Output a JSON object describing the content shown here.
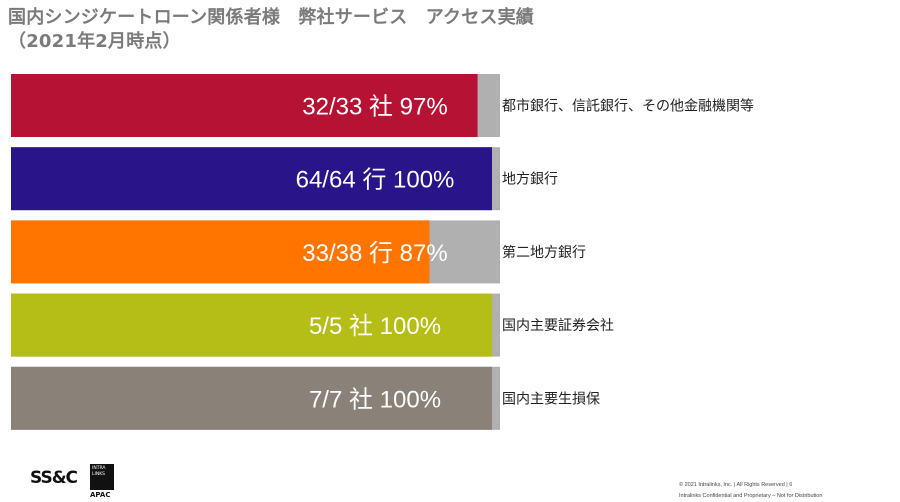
{
  "title": {
    "line1": "国内シンジケートローン関係者様　弊社サービス　アクセス実績",
    "line2": "（2021年2月時点）"
  },
  "chart_data": {
    "type": "bar",
    "orientation": "horizontal",
    "categories": [
      "都市銀行、信託銀行、その他金融機関等",
      "地方銀行",
      "第二地方銀行",
      "国内主要証券会社",
      "国内主要生損保"
    ],
    "values": [
      97,
      100,
      87,
      100,
      100
    ],
    "data_labels": [
      "32/33 社 97%",
      "64/64 行 100%",
      "33/38 行 87%",
      "5/5 社 100%",
      "7/7 社 100%"
    ],
    "colors": [
      "#b51234",
      "#2a1489",
      "#ff7500",
      "#b5bd17",
      "#8a8178"
    ],
    "remainder_color": "#b0b0b0",
    "xlim": [
      0,
      100
    ]
  },
  "footer": {
    "logo_text": "SS&C",
    "logo_box_text": "INTRA\nLINKS",
    "logo_region": "APAC",
    "copyright": "© 2021 Intralinks, Inc. | All Rights Reserved | 6",
    "confidential": "Intralinks Confidential and Proprietary – Not for Distribution"
  }
}
